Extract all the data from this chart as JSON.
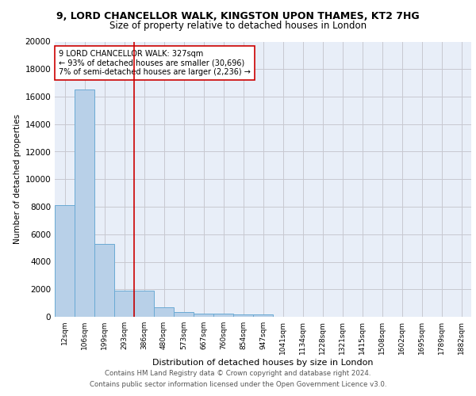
{
  "title_line1": "9, LORD CHANCELLOR WALK, KINGSTON UPON THAMES, KT2 7HG",
  "title_line2": "Size of property relative to detached houses in London",
  "xlabel": "Distribution of detached houses by size in London",
  "ylabel": "Number of detached properties",
  "bin_labels": [
    "12sqm",
    "106sqm",
    "199sqm",
    "293sqm",
    "386sqm",
    "480sqm",
    "573sqm",
    "667sqm",
    "760sqm",
    "854sqm",
    "947sqm",
    "1041sqm",
    "1134sqm",
    "1228sqm",
    "1321sqm",
    "1415sqm",
    "1508sqm",
    "1602sqm",
    "1695sqm",
    "1789sqm",
    "1882sqm"
  ],
  "bar_values": [
    8100,
    16500,
    5300,
    1900,
    1900,
    700,
    350,
    250,
    220,
    200,
    150,
    0,
    0,
    0,
    0,
    0,
    0,
    0,
    0,
    0,
    0
  ],
  "bar_color": "#b8d0e8",
  "bar_edge_color": "#6aaad4",
  "property_line_x": 3.5,
  "property_line_color": "#cc0000",
  "annotation_text": "9 LORD CHANCELLOR WALK: 327sqm\n← 93% of detached houses are smaller (30,696)\n7% of semi-detached houses are larger (2,236) →",
  "annotation_box_color": "#ffffff",
  "annotation_box_edge_color": "#cc0000",
  "ylim": [
    0,
    20000
  ],
  "yticks": [
    0,
    2000,
    4000,
    6000,
    8000,
    10000,
    12000,
    14000,
    16000,
    18000,
    20000
  ],
  "grid_color": "#c8c8d0",
  "bg_color": "#e8eef8",
  "footer_line1": "Contains HM Land Registry data © Crown copyright and database right 2024.",
  "footer_line2": "Contains public sector information licensed under the Open Government Licence v3.0."
}
